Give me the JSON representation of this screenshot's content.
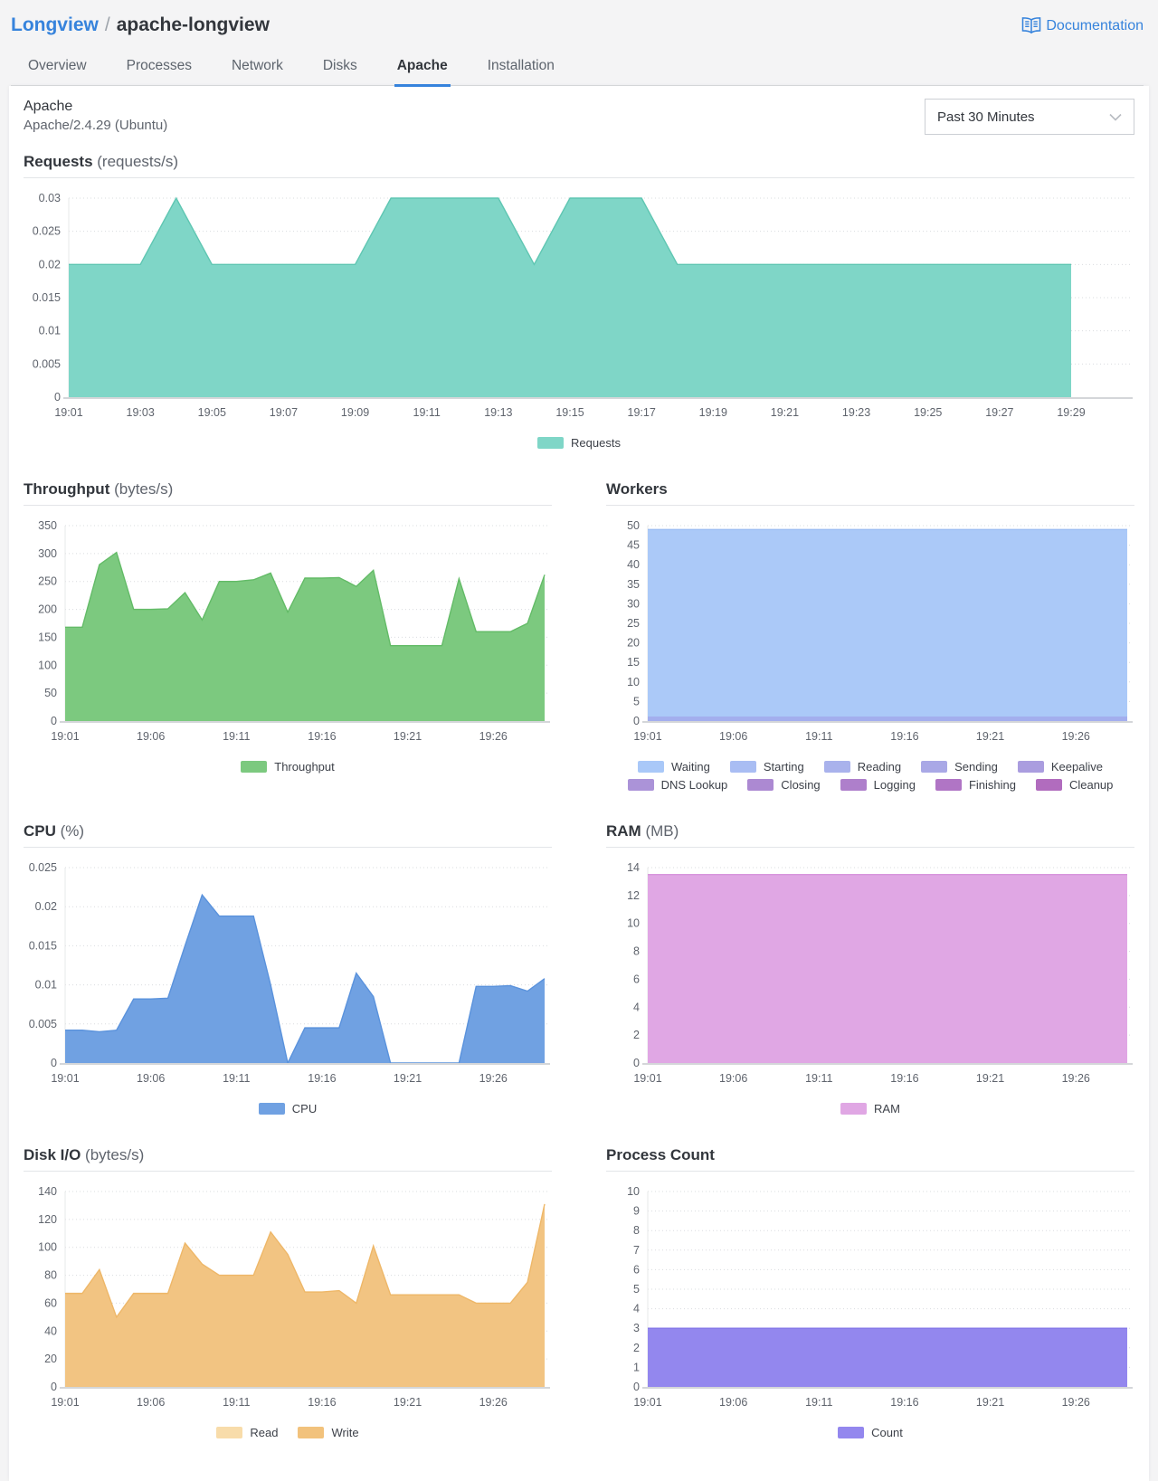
{
  "header": {
    "breadcrumb": {
      "parent": "Longview",
      "separator": "/",
      "current": "apache-longview"
    },
    "documentation_label": "Documentation",
    "tabs": [
      {
        "label": "Overview",
        "active": false
      },
      {
        "label": "Processes",
        "active": false
      },
      {
        "label": "Network",
        "active": false
      },
      {
        "label": "Disks",
        "active": false
      },
      {
        "label": "Apache",
        "active": true
      },
      {
        "label": "Installation",
        "active": false
      }
    ]
  },
  "panel": {
    "title": "Apache",
    "subtitle": "Apache/2.4.29 (Ubuntu)",
    "time_range": {
      "value": "Past 30 Minutes"
    }
  },
  "colors": {
    "accent_blue": "#3683dc",
    "requests": "#7fd6c7",
    "throughput": "#7cc97f",
    "workers_waiting": "#abc9f8",
    "cpu": "#70a1e2",
    "ram": "#e0a7e4",
    "disk_write": "#f2c482",
    "process_count": "#9387ee"
  },
  "chart_data": [
    {
      "id": "requests",
      "type": "area",
      "title": "Requests",
      "unit": "(requests/s)",
      "xlim": [
        1,
        29
      ],
      "x_start_label": "19:01",
      "x_interval_minutes": 1,
      "ylim": [
        0,
        0.03
      ],
      "yticks": [
        0,
        0.005,
        0.01,
        0.015,
        0.02,
        0.025,
        0.03
      ],
      "ytick_labels": [
        "0",
        "0.005",
        "0.01",
        "0.015",
        "0.02",
        "0.025",
        "0.03"
      ],
      "xticks": {
        "positions": [
          1,
          3,
          5,
          7,
          9,
          11,
          13,
          15,
          17,
          19,
          21,
          23,
          25,
          27,
          29
        ],
        "labels": [
          "19:01",
          "19:03",
          "19:05",
          "19:07",
          "19:09",
          "19:11",
          "19:13",
          "19:15",
          "19:17",
          "19:19",
          "19:21",
          "19:23",
          "19:25",
          "19:27",
          "19:29"
        ]
      },
      "series": [
        {
          "name": "Requests",
          "color": "#7fd6c7",
          "line": "#5fc6b2",
          "values": [
            0.02,
            0.02,
            0.02,
            0.03,
            0.02,
            0.02,
            0.02,
            0.02,
            0.02,
            0.03,
            0.03,
            0.03,
            0.03,
            0.02,
            0.03,
            0.03,
            0.03,
            0.02,
            0.02,
            0.02,
            0.02,
            0.02,
            0.02,
            0.02,
            0.02,
            0.02,
            0.02,
            0.02,
            0.02
          ]
        }
      ],
      "legend_rows": [
        [
          {
            "label": "Requests",
            "color": "#7fd6c7"
          }
        ]
      ]
    },
    {
      "id": "throughput",
      "type": "area",
      "title": "Throughput",
      "unit": "(bytes/s)",
      "xlim": [
        1,
        29
      ],
      "ylim": [
        0,
        350
      ],
      "yticks": [
        0,
        50,
        100,
        150,
        200,
        250,
        300,
        350
      ],
      "ytick_labels": [
        "0",
        "50",
        "100",
        "150",
        "200",
        "250",
        "300",
        "350"
      ],
      "xticks": {
        "positions": [
          1,
          6,
          11,
          16,
          21,
          26
        ],
        "labels": [
          "19:01",
          "19:06",
          "19:11",
          "19:16",
          "19:21",
          "19:26"
        ]
      },
      "series": [
        {
          "name": "Throughput",
          "color": "#7cc97f",
          "line": "#63bb67",
          "values": [
            168,
            168,
            280,
            302,
            200,
            200,
            201,
            230,
            181,
            250,
            250,
            253,
            265,
            195,
            256,
            256,
            257,
            241,
            270,
            135,
            135,
            135,
            135,
            255,
            160,
            160,
            160,
            175,
            262
          ]
        }
      ],
      "legend_rows": [
        [
          {
            "label": "Throughput",
            "color": "#7cc97f"
          }
        ]
      ]
    },
    {
      "id": "workers",
      "type": "area",
      "title": "Workers",
      "xlim": [
        1,
        29
      ],
      "ylim": [
        0,
        50
      ],
      "yticks": [
        0,
        5,
        10,
        15,
        20,
        25,
        30,
        35,
        40,
        45,
        50
      ],
      "ytick_labels": [
        "0",
        "5",
        "10",
        "15",
        "20",
        "25",
        "30",
        "35",
        "40",
        "45",
        "50"
      ],
      "xticks": {
        "positions": [
          1,
          6,
          11,
          16,
          21,
          26
        ],
        "labels": [
          "19:01",
          "19:06",
          "19:11",
          "19:16",
          "19:21",
          "19:26"
        ]
      },
      "series": [
        {
          "name": "Waiting",
          "color": "#abc9f8",
          "line": "#9cbdf3",
          "values": [
            49,
            49
          ]
        },
        {
          "name": "Sending",
          "color": "#a3aeee",
          "line": "#a3aeee",
          "values": [
            1,
            1
          ]
        }
      ],
      "legend_rows": [
        [
          {
            "label": "Waiting",
            "color": "#a9c8f8"
          },
          {
            "label": "Starting",
            "color": "#a9bdf3"
          },
          {
            "label": "Reading",
            "color": "#a9b2ec"
          },
          {
            "label": "Sending",
            "color": "#a9a8e6"
          },
          {
            "label": "Keepalive",
            "color": "#aa9ddf"
          }
        ],
        [
          {
            "label": "DNS Lookup",
            "color": "#ab93d8"
          },
          {
            "label": "Closing",
            "color": "#ac89d2"
          },
          {
            "label": "Logging",
            "color": "#ae7fcb"
          },
          {
            "label": "Finishing",
            "color": "#b075c5"
          },
          {
            "label": "Cleanup",
            "color": "#b16cbe"
          }
        ]
      ]
    },
    {
      "id": "cpu",
      "type": "area",
      "title": "CPU",
      "unit": "(%)",
      "xlim": [
        1,
        29
      ],
      "ylim": [
        0,
        0.025
      ],
      "yticks": [
        0,
        0.005,
        0.01,
        0.015,
        0.02,
        0.025
      ],
      "ytick_labels": [
        "0",
        "0.005",
        "0.01",
        "0.015",
        "0.02",
        "0.025"
      ],
      "xticks": {
        "positions": [
          1,
          6,
          11,
          16,
          21,
          26
        ],
        "labels": [
          "19:01",
          "19:06",
          "19:11",
          "19:16",
          "19:21",
          "19:26"
        ]
      },
      "series": [
        {
          "name": "CPU",
          "color": "#70a1e2",
          "line": "#5a92dc",
          "values": [
            0.0042,
            0.0042,
            0.004,
            0.0042,
            0.0082,
            0.0082,
            0.0083,
            0.015,
            0.0215,
            0.0188,
            0.0188,
            0.0188,
            0.01,
            0,
            0.0045,
            0.0045,
            0.0045,
            0.0115,
            0.0085,
            0,
            0,
            0,
            0,
            0,
            0.0098,
            0.0098,
            0.0099,
            0.0092,
            0.0108
          ]
        }
      ],
      "legend_rows": [
        [
          {
            "label": "CPU",
            "color": "#70a1e2"
          }
        ]
      ]
    },
    {
      "id": "ram",
      "type": "area",
      "title": "RAM",
      "unit": "(MB)",
      "xlim": [
        1,
        29
      ],
      "ylim": [
        0,
        14
      ],
      "yticks": [
        0,
        2,
        4,
        6,
        8,
        10,
        12,
        14
      ],
      "ytick_labels": [
        "0",
        "2",
        "4",
        "6",
        "8",
        "10",
        "12",
        "14"
      ],
      "xticks": {
        "positions": [
          1,
          6,
          11,
          16,
          21,
          26
        ],
        "labels": [
          "19:01",
          "19:06",
          "19:11",
          "19:16",
          "19:21",
          "19:26"
        ]
      },
      "series": [
        {
          "name": "RAM",
          "color": "#e0a7e4",
          "line": "#d795dc",
          "values": [
            13.5,
            13.5
          ]
        }
      ],
      "legend_rows": [
        [
          {
            "label": "RAM",
            "color": "#e0a7e4"
          }
        ]
      ]
    },
    {
      "id": "disk-io",
      "type": "area",
      "title": "Disk I/O",
      "unit": "(bytes/s)",
      "xlim": [
        1,
        29
      ],
      "ylim": [
        0,
        140
      ],
      "yticks": [
        0,
        20,
        40,
        60,
        80,
        100,
        120,
        140
      ],
      "ytick_labels": [
        "0",
        "20",
        "40",
        "60",
        "80",
        "100",
        "120",
        "140"
      ],
      "xticks": {
        "positions": [
          1,
          6,
          11,
          16,
          21,
          26
        ],
        "labels": [
          "19:01",
          "19:06",
          "19:11",
          "19:16",
          "19:21",
          "19:26"
        ]
      },
      "series": [
        {
          "name": "Write",
          "color": "#f2c482",
          "line": "#eeb768",
          "values": [
            67,
            67,
            84,
            50,
            67,
            67,
            67,
            103,
            88,
            80,
            80,
            80,
            111,
            95,
            68,
            68,
            69,
            60,
            101,
            66,
            66,
            66,
            66,
            66,
            60,
            60,
            60,
            75,
            131
          ]
        }
      ],
      "legend_rows": [
        [
          {
            "label": "Read",
            "color": "#f8dcaa"
          },
          {
            "label": "Write",
            "color": "#f2c27c"
          }
        ]
      ]
    },
    {
      "id": "process-count",
      "type": "area",
      "title": "Process Count",
      "xlim": [
        1,
        29
      ],
      "ylim": [
        0,
        10
      ],
      "yticks": [
        0,
        1,
        2,
        3,
        4,
        5,
        6,
        7,
        8,
        9,
        10
      ],
      "ytick_labels": [
        "0",
        "1",
        "2",
        "3",
        "4",
        "5",
        "6",
        "7",
        "8",
        "9",
        "10"
      ],
      "xticks": {
        "positions": [
          1,
          6,
          11,
          16,
          21,
          26
        ],
        "labels": [
          "19:01",
          "19:06",
          "19:11",
          "19:16",
          "19:21",
          "19:26"
        ]
      },
      "series": [
        {
          "name": "Count",
          "color": "#9387ee",
          "line": "#8376e8",
          "values": [
            3,
            3
          ]
        }
      ],
      "legend_rows": [
        [
          {
            "label": "Count",
            "color": "#9387ee"
          }
        ]
      ]
    }
  ]
}
